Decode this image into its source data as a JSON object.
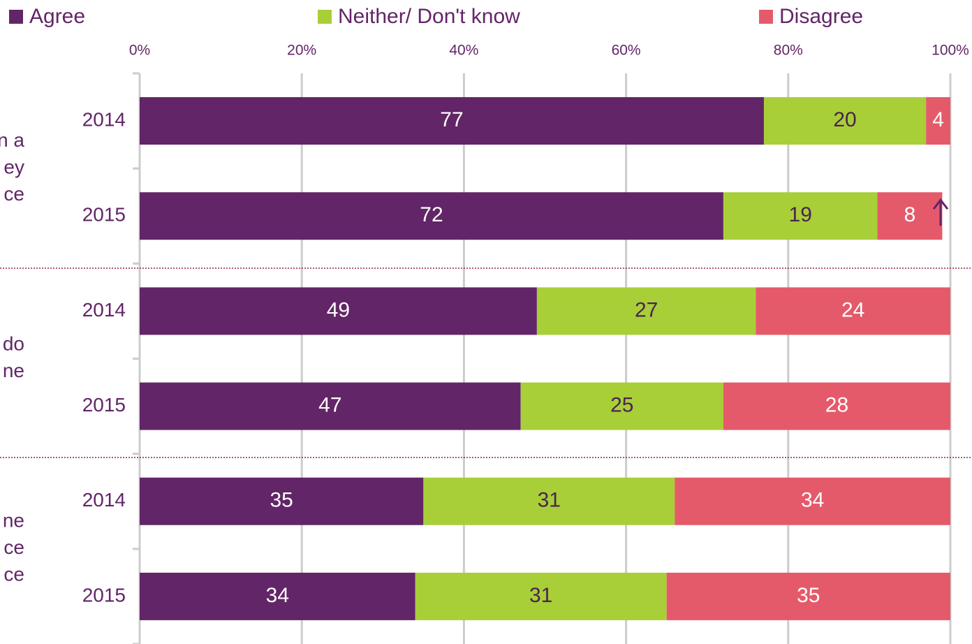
{
  "chart_data": {
    "type": "bar",
    "orientation": "horizontal",
    "stacked": true,
    "categories": [
      "2014",
      "2015",
      "2014",
      "2015",
      "2014",
      "2015"
    ],
    "group_labels": [
      [
        "n a",
        "ey",
        "ce"
      ],
      [
        "do",
        "ne"
      ],
      [
        "ne",
        "ce",
        "ce"
      ]
    ],
    "series": [
      {
        "name": "Agree",
        "color": "#622567",
        "label_color": "#ffffff",
        "values": [
          77,
          72,
          49,
          47,
          35,
          34
        ]
      },
      {
        "name": "Neither/ Don't know",
        "color": "#a8cf38",
        "label_color": "#4b2350",
        "values": [
          20,
          19,
          27,
          25,
          31,
          31
        ]
      },
      {
        "name": "Disagree",
        "color": "#e55a6a",
        "label_color": "#ffffff",
        "values": [
          4,
          8,
          24,
          28,
          34,
          35
        ]
      }
    ],
    "xlim": [
      0,
      100
    ],
    "xticks": [
      {
        "value": 0,
        "label": "0%"
      },
      {
        "value": 20,
        "label": "20%"
      },
      {
        "value": 40,
        "label": "40%"
      },
      {
        "value": 60,
        "label": "60%"
      },
      {
        "value": 80,
        "label": "80%"
      },
      {
        "value": 100,
        "label": "100%"
      }
    ],
    "grid": true,
    "legend": "top"
  }
}
